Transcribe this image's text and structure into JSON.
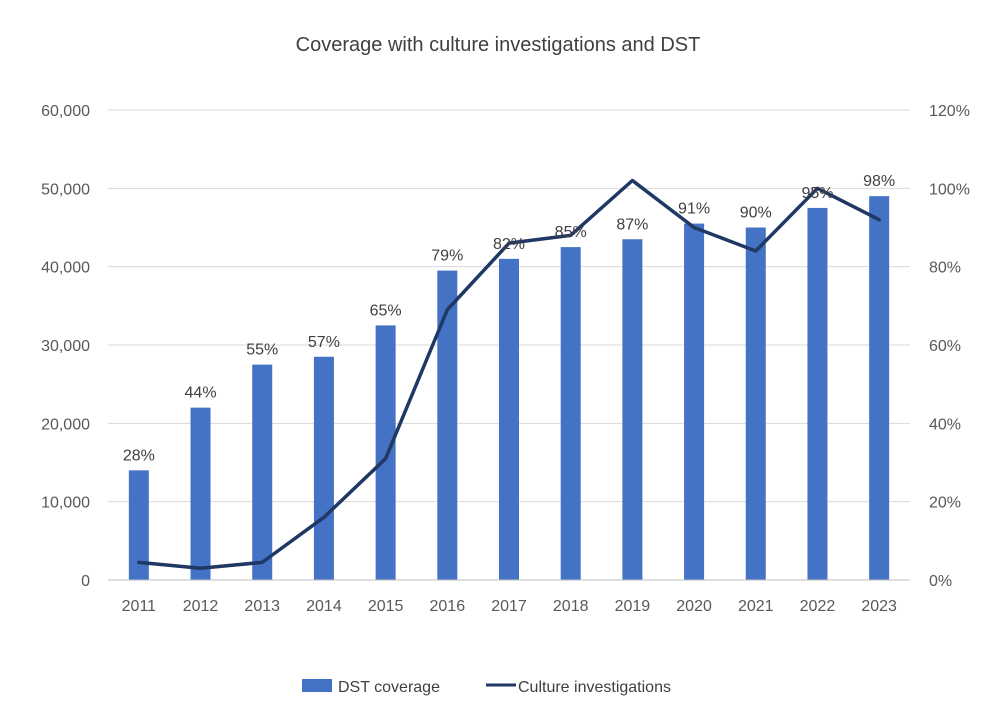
{
  "chart_data": {
    "type": "bar",
    "title": "Coverage with culture investigations and DST",
    "categories": [
      "2011",
      "2012",
      "2013",
      "2014",
      "2015",
      "2016",
      "2017",
      "2018",
      "2019",
      "2020",
      "2021",
      "2022",
      "2023"
    ],
    "series": [
      {
        "name": "DST coverage",
        "type": "bar",
        "axis": "left",
        "values": [
          14000,
          22000,
          27500,
          28500,
          32500,
          39500,
          41000,
          42500,
          43500,
          45500,
          45000,
          47500,
          49000
        ],
        "data_labels": [
          "28%",
          "44%",
          "55%",
          "57%",
          "65%",
          "79%",
          "82%",
          "85%",
          "87%",
          "91%",
          "90%",
          "95%",
          "98%"
        ],
        "color": "#4472c4"
      },
      {
        "name": "Culture investigations",
        "type": "line",
        "axis": "right",
        "values": [
          0.045,
          0.03,
          0.045,
          0.16,
          0.31,
          0.69,
          0.86,
          0.88,
          1.02,
          0.9,
          0.84,
          1.0,
          0.92
        ],
        "color": "#1f3864"
      }
    ],
    "y_left": {
      "min": 0,
      "max": 60000,
      "ticks": [
        "0",
        "10,000",
        "20,000",
        "30,000",
        "40,000",
        "50,000",
        "60,000"
      ]
    },
    "y_right": {
      "min": 0,
      "max": 1.2,
      "ticks": [
        "0%",
        "20%",
        "40%",
        "60%",
        "80%",
        "100%",
        "120%"
      ]
    },
    "grid": true,
    "legend": "bottom"
  }
}
